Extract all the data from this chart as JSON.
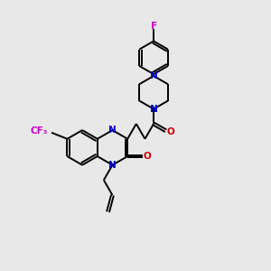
{
  "background_color": "#e8e8e8",
  "bond_color": "#000000",
  "N_color": "#0000cc",
  "O_color": "#cc0000",
  "F_color": "#cc00cc",
  "line_width": 1.4,
  "font_size": 7.5,
  "figsize": [
    3.0,
    3.0
  ],
  "dpi": 100,
  "xlim": [
    0,
    10
  ],
  "ylim": [
    0,
    11
  ]
}
